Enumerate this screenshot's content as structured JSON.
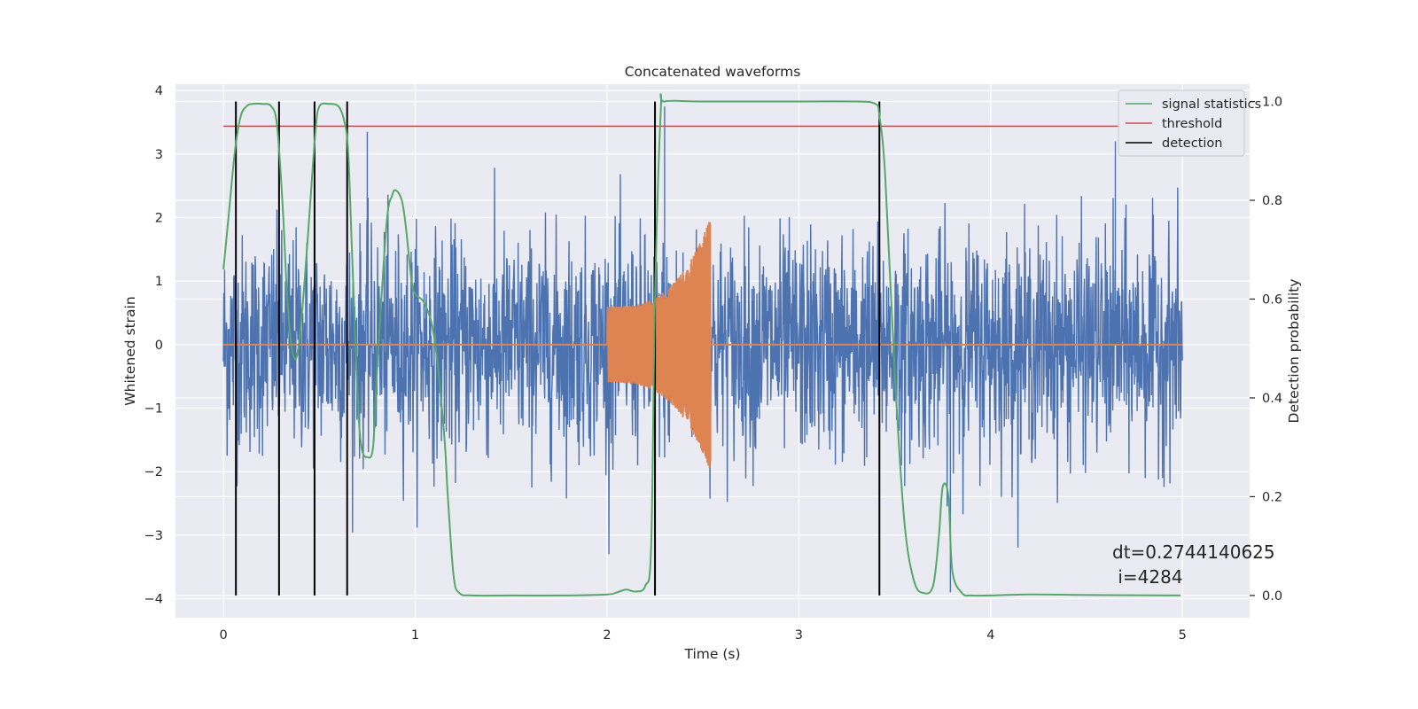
{
  "chart_data": {
    "type": "line",
    "title": "Concatenated waveforms",
    "xlabel": "Time (s)",
    "ylabel": "Whitened strain",
    "y2label": "Detection probability",
    "xlim": [
      -0.25,
      5.35
    ],
    "ylim": [
      -4.3,
      4.1
    ],
    "y2lim": [
      -0.045,
      1.035
    ],
    "xticks": [
      0,
      1,
      2,
      3,
      4,
      5
    ],
    "yticks": [
      -4,
      -3,
      -2,
      -1,
      0,
      1,
      2,
      3,
      4
    ],
    "y2ticks": [
      0.0,
      0.2,
      0.4,
      0.6,
      0.8,
      1.0
    ],
    "xtick_labels": [
      "0",
      "1",
      "2",
      "3",
      "4",
      "5"
    ],
    "ytick_labels": [
      "−4",
      "−3",
      "−2",
      "−1",
      "0",
      "1",
      "2",
      "3",
      "4"
    ],
    "y2tick_labels": [
      "0.0",
      "0.2",
      "0.4",
      "0.6",
      "0.8",
      "1.0"
    ],
    "grid": true,
    "legend_position": "top-right",
    "colors": {
      "background": "#eaeaf2",
      "grid": "#ffffff",
      "strain": "#4c72b0",
      "template": "#dd8452",
      "signal_statistics": "#55a868",
      "threshold": "#c44e52",
      "detection": "#000000"
    },
    "series": [
      {
        "name": "",
        "role": "whitened-strain-noise",
        "axis": "left",
        "x_range": [
          0,
          5
        ],
        "envelope": 2.1
      },
      {
        "name": "",
        "role": "injected-chirp",
        "axis": "left",
        "x_range": [
          2.0,
          2.54
        ],
        "amplitude_start": 0.6,
        "amplitude_end": 2.0
      },
      {
        "name": "signal statistics",
        "axis": "right",
        "x": [
          0,
          0.03,
          0.06,
          0.09,
          0.12,
          0.15,
          0.2,
          0.25,
          0.28,
          0.31,
          0.33,
          0.35,
          0.37,
          0.39,
          0.42,
          0.45,
          0.48,
          0.5,
          0.55,
          0.6,
          0.63,
          0.65,
          0.67,
          0.7,
          0.72,
          0.75,
          0.78,
          0.8,
          0.85,
          0.88,
          0.9,
          0.93,
          0.95,
          0.98,
          1.0,
          1.05,
          1.1,
          1.15,
          1.17,
          1.2,
          1.23,
          1.3,
          1.5,
          1.8,
          2.0,
          2.05,
          2.1,
          2.15,
          2.2,
          2.23,
          2.25,
          2.28,
          2.3,
          2.5,
          3.0,
          3.3,
          3.4,
          3.42,
          3.45,
          3.5,
          3.55,
          3.6,
          3.65,
          3.7,
          3.73,
          3.75,
          3.78,
          3.8,
          3.85,
          3.9,
          4.0,
          4.2,
          4.5,
          4.99
        ],
        "y": [
          0.66,
          0.78,
          0.9,
          0.97,
          0.99,
          0.995,
          0.995,
          0.99,
          0.95,
          0.78,
          0.62,
          0.52,
          0.48,
          0.5,
          0.62,
          0.78,
          0.94,
          0.99,
          0.995,
          0.99,
          0.96,
          0.9,
          0.7,
          0.4,
          0.3,
          0.28,
          0.3,
          0.45,
          0.75,
          0.81,
          0.82,
          0.8,
          0.75,
          0.64,
          0.61,
          0.59,
          0.52,
          0.33,
          0.2,
          0.04,
          0.005,
          0.0,
          0.0,
          0.0,
          0.002,
          0.006,
          0.012,
          0.008,
          0.02,
          0.1,
          0.6,
          0.98,
          1.0,
          1.0,
          1.0,
          1.0,
          0.995,
          0.97,
          0.85,
          0.45,
          0.15,
          0.03,
          0.005,
          0.02,
          0.12,
          0.22,
          0.2,
          0.05,
          0.005,
          0.0,
          0.0,
          0.002,
          0.001,
          0.0
        ]
      },
      {
        "name": "threshold",
        "axis": "right",
        "value": 0.95,
        "x_range": [
          0,
          5.1
        ]
      },
      {
        "name": "detection",
        "axis": "right",
        "x": [
          0.065,
          0.29,
          0.475,
          0.645,
          2.25,
          3.42
        ],
        "y_range": [
          0.0,
          1.0
        ]
      }
    ],
    "annotation": {
      "line1": "dt=0.2744140625",
      "line2": " i=4284"
    }
  }
}
